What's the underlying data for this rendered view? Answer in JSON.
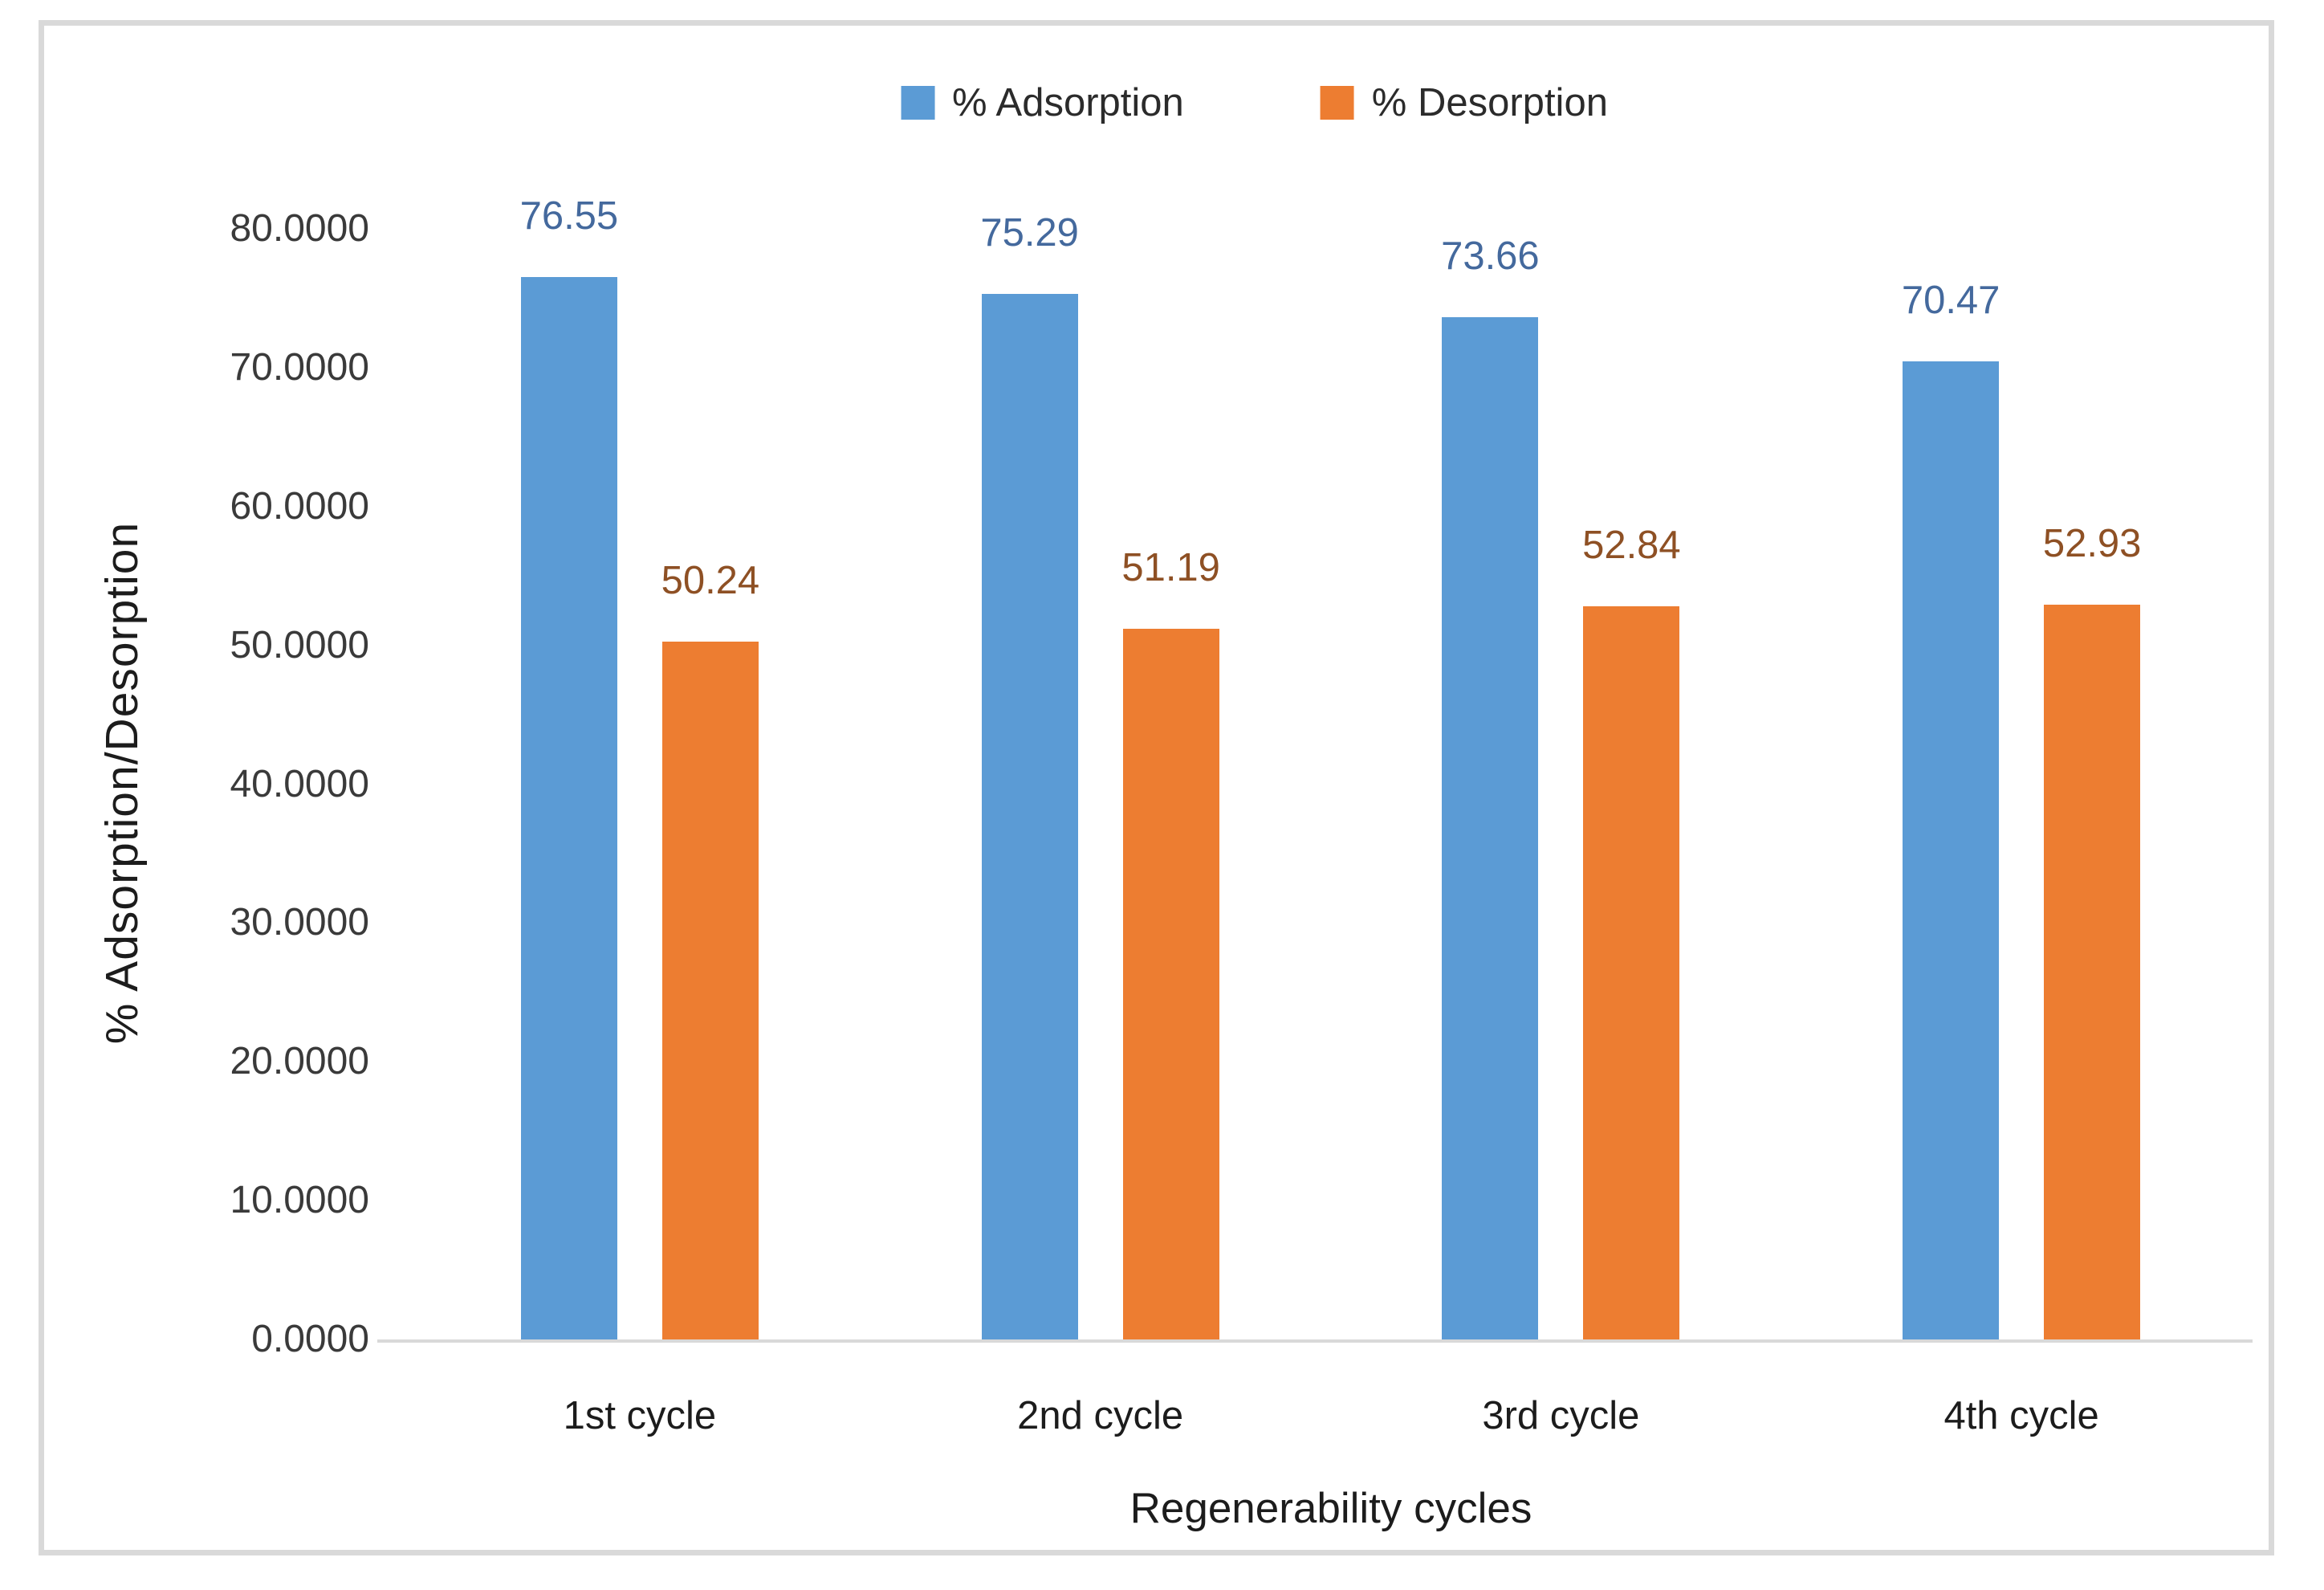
{
  "page": {
    "background_color": "#ffffff",
    "frame_border_color": "#d9d9d9",
    "axis_line_color": "#d9d9d9"
  },
  "chart_data": {
    "type": "bar",
    "title": "",
    "xlabel": "Regenerability cycles",
    "ylabel": "% Adsorption/Desorption",
    "categories": [
      "1st cycle",
      "2nd cycle",
      "3rd cycle",
      "4th cycle"
    ],
    "series": [
      {
        "name": "% Adsorption",
        "color": "#5B9BD5",
        "label_color": "#44699D",
        "values": [
          76.55,
          75.29,
          73.66,
          70.47
        ],
        "data_labels": [
          "76.55",
          "75.29",
          "73.66",
          "70.47"
        ]
      },
      {
        "name": "% Desorption",
        "color": "#ED7D31",
        "label_color": "#8E5024",
        "values": [
          50.24,
          51.19,
          52.84,
          52.93
        ],
        "data_labels": [
          "50.24",
          "51.19",
          "52.84",
          "52.93"
        ]
      }
    ],
    "ylim": [
      0,
      80
    ],
    "ytick_step": 10,
    "yticklabels": [
      "0.0000",
      "10.0000",
      "20.0000",
      "30.0000",
      "40.0000",
      "50.0000",
      "60.0000",
      "70.0000",
      "80.0000"
    ],
    "grid": false,
    "legend_position": "top-center"
  }
}
